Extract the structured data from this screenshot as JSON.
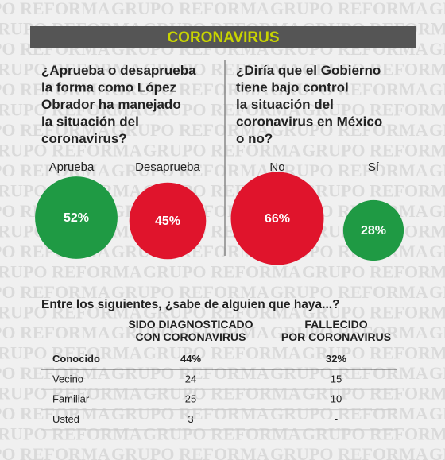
{
  "watermark": "GRUPO REFORMA",
  "header": {
    "title": "CORONAVIRUS"
  },
  "panels": [
    {
      "question": [
        "¿Aprueba o desaprueba",
        "la forma como López",
        "Obrador ha manejado",
        "la situación del",
        "coronavirus?"
      ],
      "bubbles": [
        {
          "label": "Aprueba",
          "value": 52,
          "value_label": "52%",
          "color": "#1f9a44"
        },
        {
          "label": "Desaprueba",
          "value": 45,
          "value_label": "45%",
          "color": "#e0142c"
        }
      ]
    },
    {
      "question": [
        "¿Diría que el Gobierno",
        " tiene bajo control",
        "la situación del",
        "coronavirus en México",
        "o no?"
      ],
      "bubbles": [
        {
          "label": "No",
          "value": 66,
          "value_label": "66%",
          "color": "#e0142c"
        },
        {
          "label": "Sí",
          "value": 28,
          "value_label": "28%",
          "color": "#1f9a44"
        }
      ]
    }
  ],
  "table": {
    "title": "Entre los siguientes, ¿sabe de alguien que haya...?",
    "columns": [
      [
        "SIDO DIAGNOSTICADO",
        "CON CORONAVIRUS"
      ],
      [
        "FALLECIDO",
        "POR CORONAVIRUS"
      ]
    ],
    "rows": [
      [
        "Conocido",
        "44%",
        "32%"
      ],
      [
        "Vecino",
        "24",
        "15"
      ],
      [
        "Familiar",
        "25",
        "10"
      ],
      [
        "Usted",
        "3",
        "-"
      ]
    ]
  }
}
